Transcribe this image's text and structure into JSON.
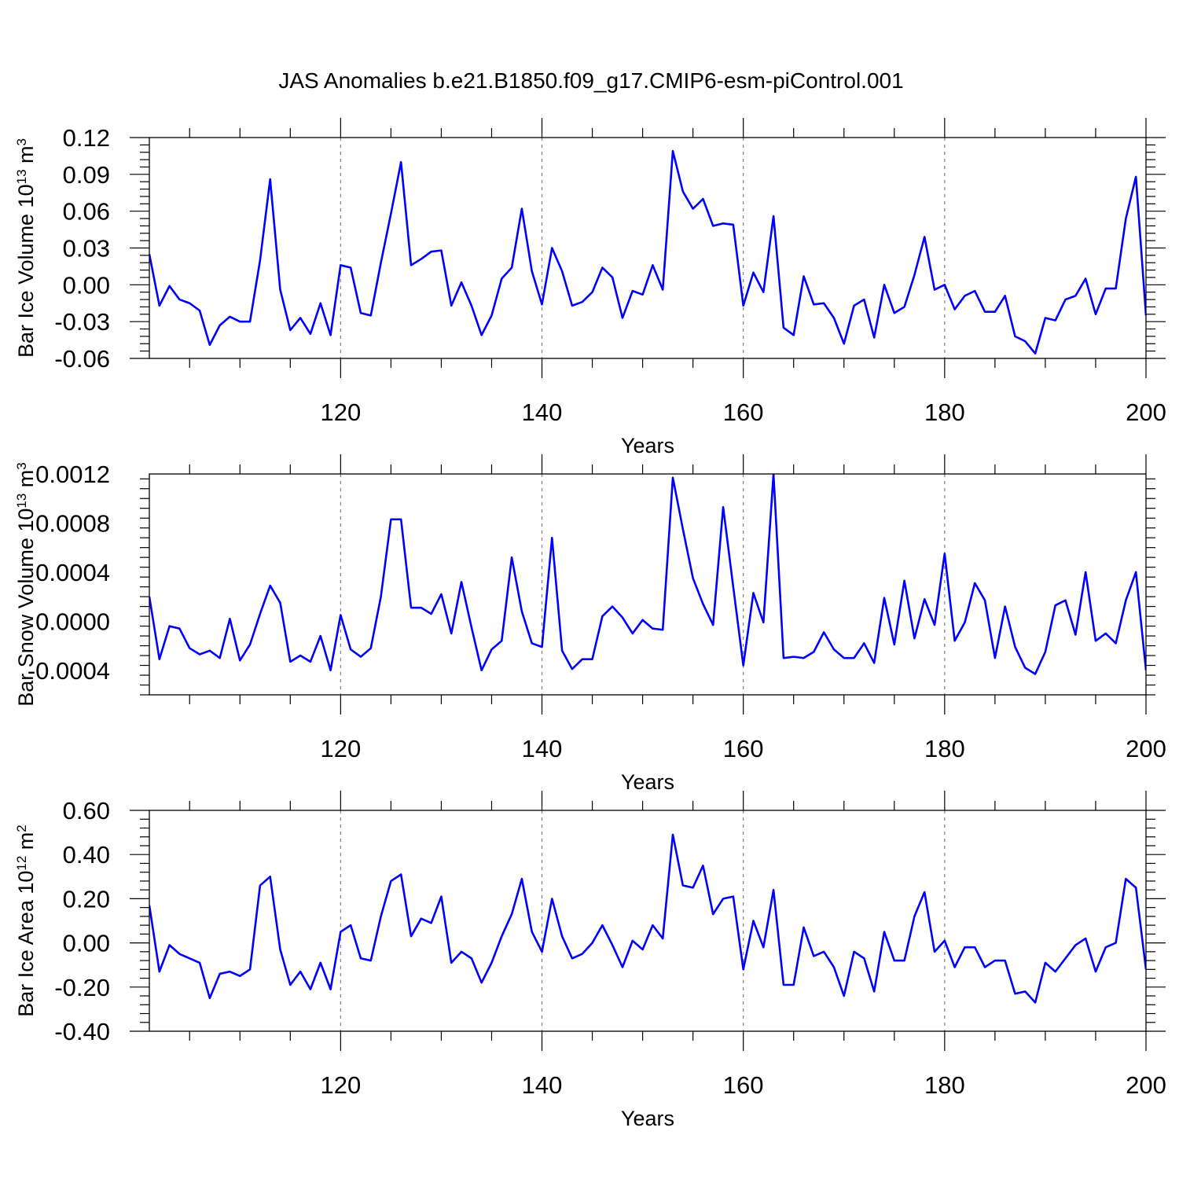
{
  "figure": {
    "title": "JAS Anomalies b.e21.B1850.f09_g17.CMIP6-esm-piControl.001"
  },
  "chart_data": [
    {
      "type": "line",
      "title": "",
      "xlabel": "Years",
      "ylabel": "Bar Ice Volume 10",
      "ylabel_sup": "13",
      "ylabel_unit": "m",
      "ylabel_unit_sup": "3",
      "xlim": [
        101,
        200
      ],
      "ylim": [
        -0.06,
        0.12
      ],
      "yticks": [
        "0.12",
        "0.09",
        "0.06",
        "0.03",
        "0.00",
        "-0.03",
        "-0.06"
      ],
      "ytick_values": [
        0.12,
        0.09,
        0.06,
        0.03,
        0.0,
        -0.03,
        -0.06
      ],
      "xticks": [
        "120",
        "140",
        "160",
        "180",
        "200"
      ],
      "xtick_values": [
        120,
        140,
        160,
        180,
        200
      ],
      "grid": "dashed vertical at major x ticks",
      "series": [
        {
          "color": "#0000ff",
          "x_start": 101,
          "values": [
            0.025,
            -0.017,
            -0.001,
            -0.012,
            -0.015,
            -0.021,
            -0.049,
            -0.033,
            -0.026,
            -0.03,
            -0.03,
            0.02,
            0.086,
            -0.004,
            -0.037,
            -0.027,
            -0.04,
            -0.015,
            -0.041,
            0.016,
            0.014,
            -0.023,
            -0.025,
            0.018,
            0.058,
            0.1,
            0.016,
            0.021,
            0.027,
            0.028,
            -0.017,
            0.002,
            -0.017,
            -0.041,
            -0.025,
            0.005,
            0.014,
            0.062,
            0.011,
            -0.016,
            0.03,
            0.011,
            -0.017,
            -0.014,
            -0.006,
            0.014,
            0.006,
            -0.027,
            -0.005,
            -0.008,
            0.016,
            -0.004,
            0.109,
            0.076,
            0.062,
            0.07,
            0.048,
            0.05,
            0.049,
            -0.017,
            0.01,
            -0.006,
            0.056,
            -0.035,
            -0.041,
            0.007,
            -0.016,
            -0.015,
            -0.027,
            -0.048,
            -0.017,
            -0.012,
            -0.043,
            0.0,
            -0.023,
            -0.018,
            0.008,
            0.039,
            -0.004,
            0.0,
            -0.02,
            -0.009,
            -0.005,
            -0.022,
            -0.022,
            -0.009,
            -0.042,
            -0.046,
            -0.056,
            -0.027,
            -0.029,
            -0.012,
            -0.009,
            0.005,
            -0.024,
            -0.003,
            -0.003,
            0.054,
            0.088,
            -0.025
          ]
        }
      ]
    },
    {
      "type": "line",
      "title": "",
      "xlabel": "Years",
      "ylabel": "Bar Snow Volume 10",
      "ylabel_sup": "13",
      "ylabel_unit": "m",
      "ylabel_unit_sup": "3",
      "xlim": [
        101,
        200
      ],
      "ylim": [
        -0.0006,
        0.0012
      ],
      "yticks": [
        "0.0012",
        "0.0008",
        "0.0004",
        "0.0000",
        "-0.0004"
      ],
      "ytick_values": [
        0.0012,
        0.0008,
        0.0004,
        0.0,
        -0.0004
      ],
      "xticks": [
        "120",
        "140",
        "160",
        "180",
        "200"
      ],
      "xtick_values": [
        120,
        140,
        160,
        180,
        200
      ],
      "grid": "dashed vertical at major x ticks",
      "series": [
        {
          "color": "#0000ff",
          "x_start": 101,
          "values": [
            0.0002,
            -0.00031,
            -4e-05,
            -6e-05,
            -0.00022,
            -0.00027,
            -0.00024,
            -0.0003,
            2e-05,
            -0.00032,
            -0.00019,
            6e-05,
            0.00029,
            0.00015,
            -0.00033,
            -0.00028,
            -0.00033,
            -0.00012,
            -0.0004,
            5e-05,
            -0.00023,
            -0.00029,
            -0.00022,
            0.0002,
            0.00083,
            0.00083,
            0.00011,
            0.00011,
            6e-05,
            0.00022,
            -0.0001,
            0.00032,
            -5e-05,
            -0.0004,
            -0.00023,
            -0.00016,
            0.00052,
            8e-05,
            -0.00018,
            -0.00021,
            0.00068,
            -0.00024,
            -0.00039,
            -0.00031,
            -0.00031,
            4e-05,
            0.00012,
            3e-05,
            -0.0001,
            1e-05,
            -6e-05,
            -7e-05,
            0.00117,
            0.00075,
            0.00035,
            0.00014,
            -3e-05,
            0.00093,
            0.00028,
            -0.00036,
            0.00023,
            -1e-05,
            0.0012,
            -0.0003,
            -0.00029,
            -0.0003,
            -0.00025,
            -9e-05,
            -0.00023,
            -0.0003,
            -0.0003,
            -0.00018,
            -0.00034,
            0.00019,
            -0.00019,
            0.00033,
            -0.00014,
            0.00018,
            -3e-05,
            0.00055,
            -0.00016,
            -1e-05,
            0.00031,
            0.00017,
            -0.0003,
            0.00012,
            -0.00021,
            -0.00038,
            -0.00043,
            -0.00025,
            0.00013,
            0.00017,
            -0.00011,
            0.0004,
            -0.00016,
            -0.0001,
            -0.00018,
            0.00017,
            0.0004,
            -0.0004
          ]
        }
      ]
    },
    {
      "type": "line",
      "title": "",
      "xlabel": "Years",
      "ylabel": "Bar Ice Area 10",
      "ylabel_sup": "12",
      "ylabel_unit": "m",
      "ylabel_unit_sup": "2",
      "xlim": [
        101,
        200
      ],
      "ylim": [
        -0.4,
        0.6
      ],
      "yticks": [
        "0.60",
        "0.40",
        "0.20",
        "0.00",
        "-0.20",
        "-0.40"
      ],
      "ytick_values": [
        0.6,
        0.4,
        0.2,
        0.0,
        -0.2,
        -0.4
      ],
      "xticks": [
        "120",
        "140",
        "160",
        "180",
        "200"
      ],
      "xtick_values": [
        120,
        140,
        160,
        180,
        200
      ],
      "grid": "dashed vertical at major x ticks",
      "series": [
        {
          "color": "#0000ff",
          "x_start": 101,
          "values": [
            0.17,
            -0.13,
            -0.01,
            -0.05,
            -0.07,
            -0.09,
            -0.25,
            -0.14,
            -0.13,
            -0.15,
            -0.12,
            0.26,
            0.3,
            -0.03,
            -0.19,
            -0.13,
            -0.21,
            -0.09,
            -0.21,
            0.05,
            0.08,
            -0.07,
            -0.08,
            0.12,
            0.28,
            0.31,
            0.03,
            0.11,
            0.09,
            0.21,
            -0.09,
            -0.04,
            -0.07,
            -0.18,
            -0.09,
            0.03,
            0.13,
            0.29,
            0.05,
            -0.04,
            0.2,
            0.03,
            -0.07,
            -0.05,
            0.0,
            0.08,
            -0.01,
            -0.11,
            0.01,
            -0.03,
            0.08,
            0.02,
            0.49,
            0.26,
            0.25,
            0.35,
            0.13,
            0.2,
            0.21,
            -0.12,
            0.1,
            -0.02,
            0.24,
            -0.19,
            -0.19,
            0.07,
            -0.06,
            -0.04,
            -0.11,
            -0.24,
            -0.04,
            -0.07,
            -0.22,
            0.05,
            -0.08,
            -0.08,
            0.12,
            0.23,
            -0.04,
            0.01,
            -0.11,
            -0.02,
            -0.02,
            -0.11,
            -0.08,
            -0.08,
            -0.23,
            -0.22,
            -0.27,
            -0.09,
            -0.13,
            -0.07,
            -0.01,
            0.02,
            -0.13,
            -0.02,
            0.0,
            0.29,
            0.25,
            -0.12
          ]
        }
      ]
    }
  ]
}
